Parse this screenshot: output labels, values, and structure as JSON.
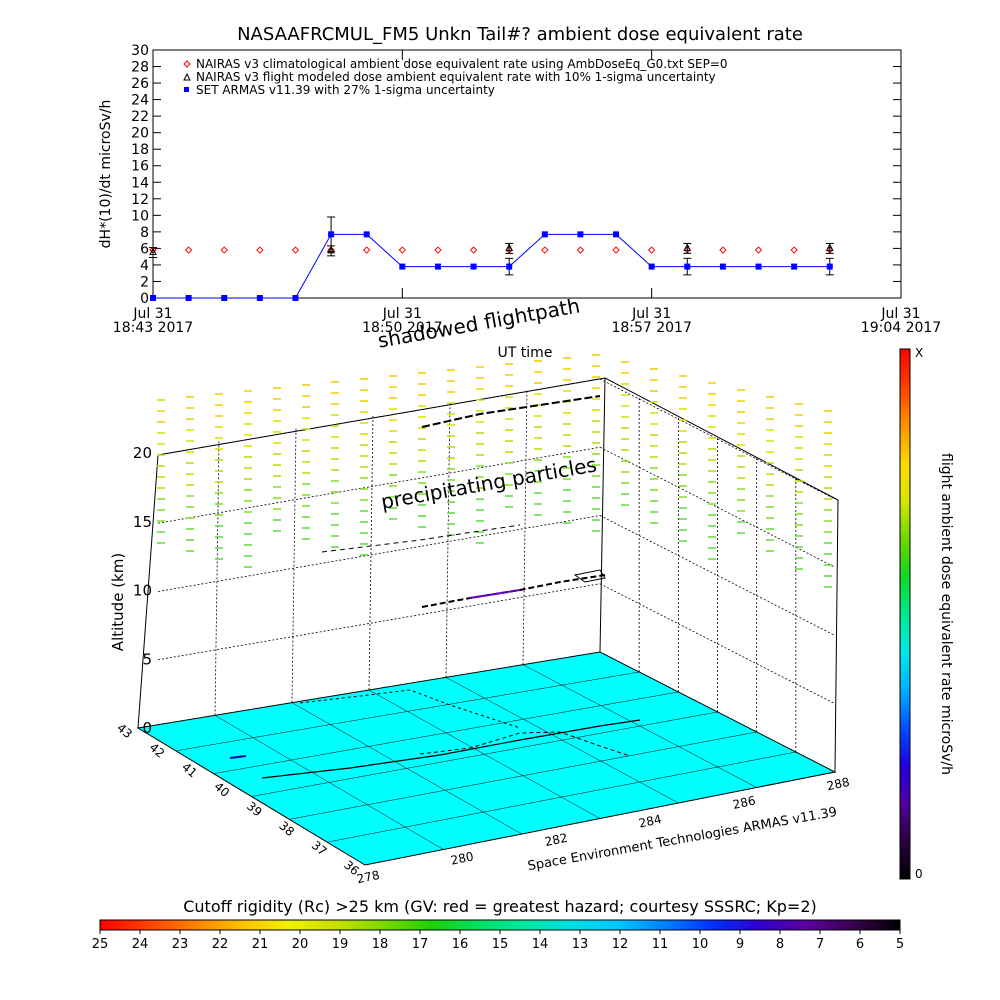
{
  "title": "NASAAFRCMUL_FM5 Unkn Tail#? ambient dose equivalent rate",
  "top_chart": {
    "ylabel": "dH*(10)/dt microSv/h",
    "xlabel": "UT time",
    "yticks": [
      0,
      2,
      4,
      6,
      8,
      10,
      12,
      14,
      16,
      18,
      20,
      22,
      24,
      26,
      28,
      30
    ],
    "xticks": [
      {
        "l1": "Jul 31",
        "l2": "18:43 2017"
      },
      {
        "l1": "Jul 31",
        "l2": "18:50 2017"
      },
      {
        "l1": "Jul 31",
        "l2": "18:57 2017"
      },
      {
        "l1": "Jul 31",
        "l2": "19:04 2017"
      }
    ],
    "legend": [
      "NAIRAS v3 climatological ambient dose equivalent rate using AmbDoseEq_G0.txt SEP=0",
      "NAIRAS v3 flight modeled dose ambient equivalent rate with 10% 1-sigma uncertainty",
      "SET ARMAS v11.39 with 27% 1-sigma uncertainty"
    ]
  },
  "chart_data": [
    {
      "type": "line",
      "title": "NASAAFRCMUL_FM5 Unkn Tail#? ambient dose equivalent rate",
      "xlabel": "UT time",
      "ylabel": "dH*(10)/dt microSv/h",
      "ylim": [
        0,
        30
      ],
      "xlim": [
        "18:43",
        "19:04"
      ],
      "grid": false,
      "legend_position": "top-left",
      "series": [
        {
          "name": "NAIRAS v3 climatological ambient dose equivalent rate using AmbDoseEq_G0.txt SEP=0",
          "marker": "diamond",
          "color": "#ff0000",
          "x": [
            "18:43",
            "18:44",
            "18:45",
            "18:46",
            "18:47",
            "18:48",
            "18:49",
            "18:50",
            "18:51",
            "18:52",
            "18:53",
            "18:54",
            "18:55",
            "18:56",
            "18:57",
            "18:58",
            "18:59",
            "19:00",
            "19:01",
            "19:02"
          ],
          "values": [
            5.8,
            5.8,
            5.8,
            5.8,
            5.8,
            5.8,
            5.8,
            5.8,
            5.8,
            5.8,
            5.8,
            5.8,
            5.8,
            5.8,
            5.8,
            5.8,
            5.8,
            5.8,
            5.8,
            5.8
          ]
        },
        {
          "name": "NAIRAS v3 flight modeled dose ambient equivalent rate with 10% 1-sigma uncertainty",
          "marker": "triangle",
          "color": "#000000",
          "x": [
            "18:43",
            "18:48",
            "18:53",
            "18:58",
            "19:02"
          ],
          "values": [
            5.5,
            5.7,
            6.0,
            6.0,
            6.0
          ],
          "error": [
            0.6,
            0.6,
            0.6,
            0.6,
            0.6
          ]
        },
        {
          "name": "SET ARMAS v11.39 with 27% 1-sigma uncertainty",
          "marker": "filled-square",
          "color": "#0000ff",
          "x": [
            "18:43",
            "18:44",
            "18:45",
            "18:46",
            "18:47",
            "18:48",
            "18:49",
            "18:50",
            "18:51",
            "18:52",
            "18:53",
            "18:54",
            "18:55",
            "18:56",
            "18:57",
            "18:58",
            "18:59",
            "19:00",
            "19:01",
            "19:02"
          ],
          "values": [
            0,
            0,
            0,
            0,
            0,
            7.7,
            7.7,
            3.8,
            3.8,
            3.8,
            3.8,
            7.7,
            7.7,
            7.7,
            3.8,
            3.8,
            3.8,
            3.8,
            3.8,
            3.8
          ],
          "error": [
            0,
            0,
            0,
            0,
            0,
            2.1,
            0,
            0,
            0,
            0,
            1.0,
            0,
            0,
            0,
            0,
            1.0,
            0,
            0,
            0,
            1.0
          ]
        }
      ]
    },
    {
      "type": "3d-surface-flightpath",
      "zlabel": "Altitude (km)",
      "zticks": [
        0,
        5,
        10,
        15,
        20
      ],
      "lat_ticks": [
        "43",
        "42",
        "41",
        "40",
        "39",
        "38",
        "37",
        "36"
      ],
      "lon_ticks": [
        "278",
        "280",
        "282",
        "284",
        "286",
        "288"
      ],
      "colorbar_label": "flight ambient dose equivalent rate microSv/h",
      "colorbar_min": "0",
      "colorbar_max": "X",
      "caption": "Space Environment Technologies ARMAS v11.39",
      "annotations": [
        "shadowed flightpath",
        "precipitating particles"
      ]
    }
  ],
  "bottom_colorbar": {
    "label": "Cutoff rigidity (Rc) >25 km (GV: red = greatest hazard; courtesy SSSRC; Kp=2)",
    "ticks": [
      "25",
      "24",
      "23",
      "22",
      "21",
      "20",
      "19",
      "18",
      "17",
      "16",
      "15",
      "14",
      "13",
      "12",
      "11",
      "10",
      "9",
      "8",
      "7",
      "6",
      "5"
    ],
    "colors": [
      "#000000",
      "#3a0050",
      "#5a00a0",
      "#3000d0",
      "#0030ff",
      "#0080ff",
      "#00c8ff",
      "#00e0e0",
      "#00e8a0",
      "#00e060",
      "#20d000",
      "#80d800",
      "#c8e000",
      "#f0f000",
      "#ffc000",
      "#ff8000",
      "#ff4000",
      "#ff0000"
    ]
  },
  "side_colorbar": {
    "colors": [
      "#000000",
      "#2a0040",
      "#5000a0",
      "#2000e0",
      "#0050ff",
      "#00b0ff",
      "#00e8e8",
      "#00e890",
      "#10d820",
      "#70d800",
      "#d8e800",
      "#ffd800",
      "#ff9000",
      "#ff4000",
      "#ff0000"
    ]
  }
}
